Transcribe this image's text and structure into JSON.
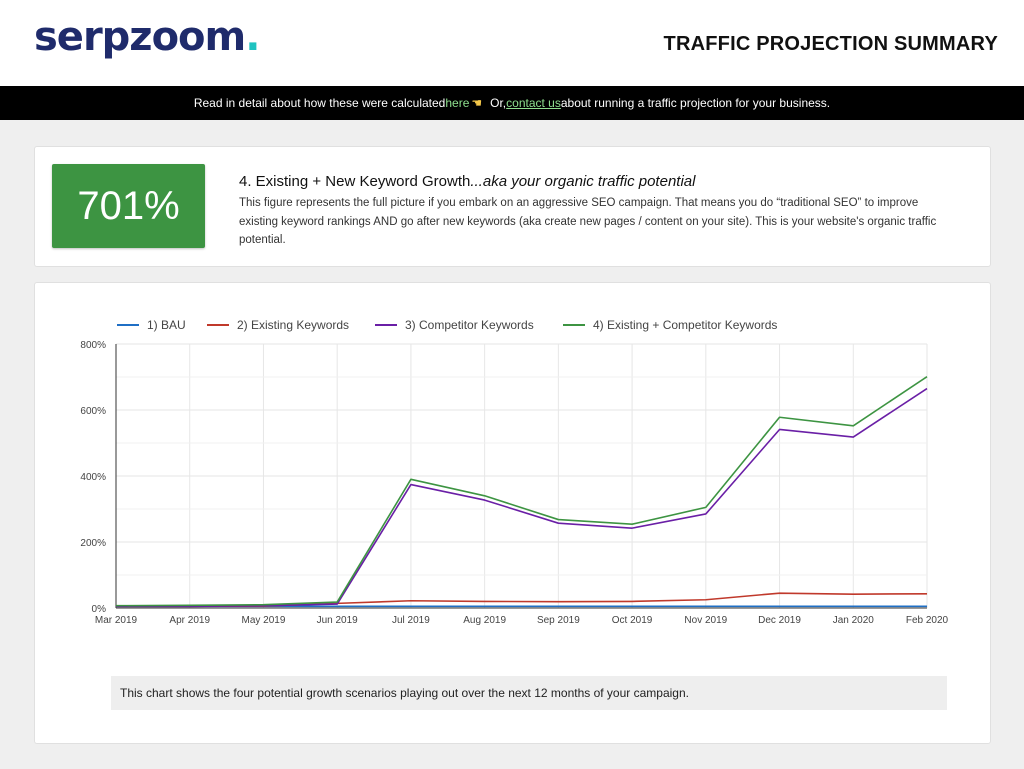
{
  "header": {
    "logo_text": "serpzoom",
    "logo_dot": ".",
    "report_title": "TRAFFIC PROJECTION SUMMARY"
  },
  "infobar": {
    "text_before": "Read in detail about how these were calculated ",
    "here_link": "here",
    "pointer_icon": "pointing-hand-icon",
    "text_or": "Or, ",
    "contact_link": "contact us",
    "text_after": " about running a traffic projection for your business."
  },
  "summary": {
    "percent": "701%",
    "title_plain": "4. Existing + New Keyword Growth",
    "title_italic": "...aka your organic traffic potential",
    "description": "This figure represents the full picture if you embark on an aggressive SEO campaign. That means you do “traditional SEO” to improve existing keyword rankings AND go after new keywords (aka create new pages / content on your site). This is your website's organic traffic potential."
  },
  "colors": {
    "accent_green": "#3d9442",
    "brand_navy": "#1f2b6b",
    "brand_teal": "#1fc3c0"
  },
  "chart_data": {
    "type": "line",
    "categories": [
      "Mar 2019",
      "Apr 2019",
      "May 2019",
      "Jun 2019",
      "Jul 2019",
      "Aug 2019",
      "Sep 2019",
      "Oct 2019",
      "Nov 2019",
      "Dec 2019",
      "Jan 2020",
      "Feb 2020"
    ],
    "ylim": [
      0,
      800
    ],
    "yticks": [
      "0%",
      "200%",
      "400%",
      "600%",
      "800%"
    ],
    "ytick_values": [
      0,
      200,
      400,
      600,
      800
    ],
    "grid": true,
    "legend_position": "top-left",
    "series": [
      {
        "name": "1) BAU",
        "color": "#1f6fc5",
        "values": [
          5,
          5,
          5,
          5,
          5,
          5,
          5,
          5,
          5,
          5,
          5,
          5
        ]
      },
      {
        "name": "2) Existing Keywords",
        "color": "#c0392b",
        "values": [
          5,
          5,
          6,
          14,
          22,
          20,
          19,
          20,
          25,
          45,
          42,
          43
        ]
      },
      {
        "name": "3) Competitor Keywords",
        "color": "#6a1fa6",
        "values": [
          5,
          5,
          7,
          12,
          374,
          327,
          257,
          242,
          285,
          541,
          518,
          665
        ]
      },
      {
        "name": "4) Existing + Competitor Keywords",
        "color": "#3d9442",
        "values": [
          7,
          8,
          10,
          18,
          390,
          340,
          268,
          254,
          305,
          578,
          552,
          701
        ]
      }
    ],
    "caption": "This chart shows the four potential growth scenarios playing out over the next 12 months of your campaign."
  }
}
